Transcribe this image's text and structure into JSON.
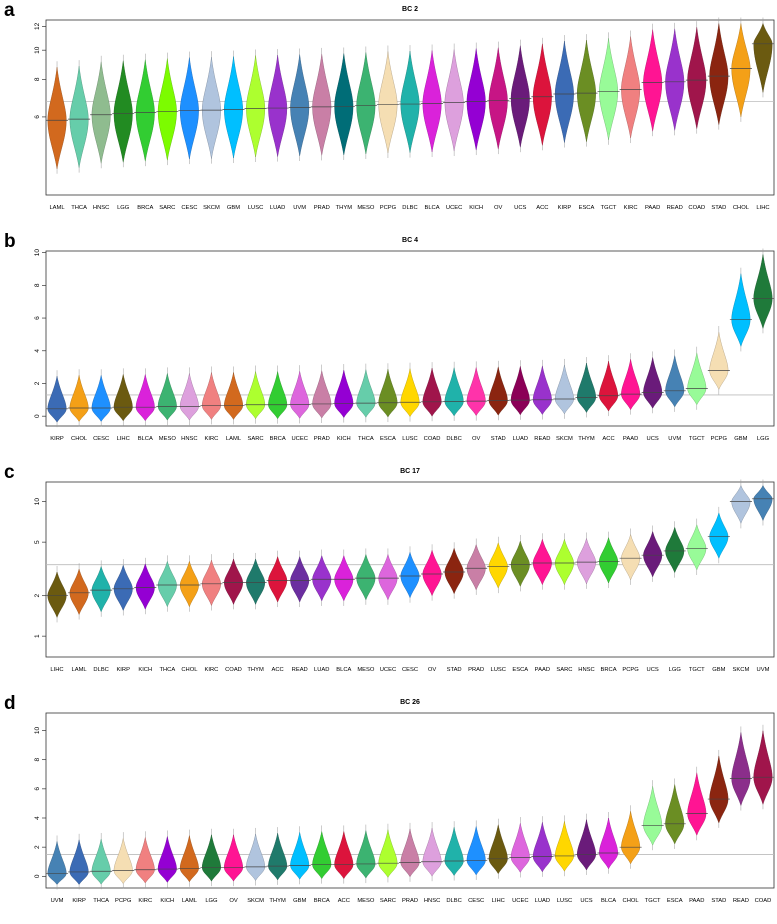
{
  "chart_data": [
    {
      "type": "violin",
      "panel": "a",
      "title": "BC 2",
      "xlabel": "",
      "ylabel": "",
      "ylim": [
        3.3,
        12.6
      ],
      "scale": "log",
      "yticks": [
        6,
        8,
        10,
        12
      ],
      "reference_line": 6.75,
      "grid": false,
      "categories": [
        "LAML",
        "THCA",
        "HNSC",
        "LGG",
        "BRCA",
        "SARC",
        "CESC",
        "SKCM",
        "GBM",
        "LUSC",
        "LUAD",
        "UVM",
        "PRAD",
        "THYM",
        "MESO",
        "PCPG",
        "DLBC",
        "BLCA",
        "UCEC",
        "KICH",
        "OV",
        "UCS",
        "ACC",
        "KIRP",
        "ESCA",
        "TGCT",
        "KIRC",
        "PAAD",
        "READ",
        "COAD",
        "STAD",
        "CHOL",
        "LIHC"
      ],
      "medians": [
        5.85,
        5.9,
        6.1,
        6.15,
        6.2,
        6.25,
        6.3,
        6.32,
        6.35,
        6.4,
        6.42,
        6.45,
        6.48,
        6.5,
        6.55,
        6.6,
        6.62,
        6.65,
        6.7,
        6.75,
        6.8,
        6.9,
        7.0,
        7.15,
        7.2,
        7.3,
        7.4,
        7.8,
        7.85,
        7.95,
        8.2,
        8.7,
        10.5
      ],
      "colors": [
        "#D2691E",
        "#66CDAA",
        "#8FBC8F",
        "#228B22",
        "#32CD32",
        "#7CFC00",
        "#1E90FF",
        "#B0C4DE",
        "#00BFFF",
        "#ADFF2F",
        "#9932CC",
        "#4682B4",
        "#C97FA6",
        "#006D77",
        "#3CB371",
        "#F5DEB3",
        "#20B2AA",
        "#DA22DA",
        "#DDA0DD",
        "#9400D3",
        "#C71585",
        "#6A1B7A",
        "#DC143C",
        "#3B6BB5",
        "#6B8E23",
        "#98FB98",
        "#F08080",
        "#FF1493",
        "#9932CC",
        "#A0154B",
        "#8B2510",
        "#F4A017",
        "#6B5A10"
      ]
    },
    {
      "type": "violin",
      "panel": "b",
      "title": "BC 4",
      "xlabel": "",
      "ylabel": "",
      "ylim": [
        -0.6,
        10.1
      ],
      "scale": "linear",
      "yticks": [
        0,
        2,
        4,
        6,
        8,
        10
      ],
      "reference_line": 1.3,
      "grid": false,
      "categories": [
        "KIRP",
        "CHOL",
        "CESC",
        "LIHC",
        "BLCA",
        "MESO",
        "HNSC",
        "KIRC",
        "LAML",
        "SARC",
        "BRCA",
        "UCEC",
        "PRAD",
        "KICH",
        "THCA",
        "ESCA",
        "LUSC",
        "COAD",
        "DLBC",
        "OV",
        "STAD",
        "LUAD",
        "READ",
        "SKCM",
        "THYM",
        "ACC",
        "PAAD",
        "UCS",
        "UVM",
        "TGCT",
        "PCPG",
        "GBM",
        "LGG"
      ],
      "medians": [
        0.45,
        0.5,
        0.5,
        0.55,
        0.55,
        0.6,
        0.6,
        0.65,
        0.65,
        0.7,
        0.7,
        0.72,
        0.75,
        0.78,
        0.8,
        0.82,
        0.85,
        0.88,
        0.9,
        0.92,
        0.95,
        0.98,
        1.0,
        1.05,
        1.15,
        1.25,
        1.35,
        1.45,
        1.55,
        1.7,
        2.8,
        5.9,
        7.2
      ],
      "colors": [
        "#3B6BB5",
        "#F4A017",
        "#1E90FF",
        "#6B5A10",
        "#DA22DA",
        "#3CB371",
        "#DDA0DD",
        "#F08080",
        "#D2691E",
        "#ADFF2F",
        "#32CD32",
        "#DD66DD",
        "#C97FA6",
        "#9400D3",
        "#66CDAA",
        "#6B8E23",
        "#FFD700",
        "#A0154B",
        "#20B2AA",
        "#FF33AA",
        "#8B2510",
        "#8B0057",
        "#9932CC",
        "#B0C4DE",
        "#1F7A6B",
        "#DC143C",
        "#FF1493",
        "#6A1B7A",
        "#4682B4",
        "#98FB98",
        "#F5DEB3",
        "#00BFFF",
        "#1F7A3A"
      ]
    },
    {
      "type": "violin",
      "panel": "c",
      "title": "BC 17",
      "xlabel": "",
      "ylabel": "",
      "ylim": [
        0.7,
        14
      ],
      "scale": "log",
      "yticks": [
        1,
        2,
        5,
        10
      ],
      "reference_line": 3.4,
      "grid": false,
      "categories": [
        "LIHC",
        "LAML",
        "DLBC",
        "KIRP",
        "KICH",
        "THCA",
        "CHOL",
        "KIRC",
        "COAD",
        "THYM",
        "ACC",
        "READ",
        "LUAD",
        "BLCA",
        "MESO",
        "UCEC",
        "CESC",
        "OV",
        "STAD",
        "PRAD",
        "LUSC",
        "ESCA",
        "PAAD",
        "SARC",
        "HNSC",
        "BRCA",
        "PCPG",
        "UCS",
        "LGG",
        "TGCT",
        "GBM",
        "SKCM",
        "UVM"
      ],
      "medians": [
        2.0,
        2.1,
        2.2,
        2.25,
        2.3,
        2.4,
        2.4,
        2.45,
        2.5,
        2.5,
        2.6,
        2.6,
        2.65,
        2.65,
        2.7,
        2.7,
        2.8,
        2.9,
        3.0,
        3.2,
        3.3,
        3.4,
        3.5,
        3.5,
        3.55,
        3.6,
        3.8,
        4.0,
        4.3,
        4.5,
        5.5,
        10.0,
        10.5
      ],
      "colors": [
        "#6B5A10",
        "#D2691E",
        "#20B2AA",
        "#3B6BB5",
        "#9400D3",
        "#66CDAA",
        "#F4A017",
        "#F08080",
        "#A0154B",
        "#1F7A6B",
        "#DC143C",
        "#6B2EA0",
        "#9932CC",
        "#DA22DA",
        "#3CB371",
        "#DD66DD",
        "#1E90FF",
        "#FF1493",
        "#8B2510",
        "#C97FA6",
        "#FFD700",
        "#6B8E23",
        "#FF1493",
        "#ADFF2F",
        "#DDA0DD",
        "#32CD32",
        "#F5DEB3",
        "#6A1B7A",
        "#1F7A3A",
        "#98FB98",
        "#00BFFF",
        "#B0C4DE",
        "#4682B4"
      ]
    },
    {
      "type": "violin",
      "panel": "d",
      "title": "BC 26",
      "xlabel": "",
      "ylabel": "",
      "ylim": [
        -0.8,
        11.2
      ],
      "scale": "linear",
      "yticks": [
        0,
        2,
        4,
        6,
        8,
        10
      ],
      "reference_line": 1.5,
      "grid": false,
      "categories": [
        "UVM",
        "KIRP",
        "THCA",
        "PCPG",
        "KIRC",
        "KICH",
        "LAML",
        "LGG",
        "OV",
        "SKCM",
        "THYM",
        "GBM",
        "BRCA",
        "ACC",
        "MESO",
        "SARC",
        "PRAD",
        "HNSC",
        "DLBC",
        "CESC",
        "LIHC",
        "UCEC",
        "LUAD",
        "LUSC",
        "UCS",
        "BLCA",
        "CHOL",
        "TGCT",
        "ESCA",
        "PAAD",
        "STAD",
        "READ",
        "COAD"
      ],
      "medians": [
        0.2,
        0.3,
        0.35,
        0.4,
        0.45,
        0.5,
        0.55,
        0.6,
        0.6,
        0.65,
        0.7,
        0.75,
        0.8,
        0.8,
        0.85,
        0.9,
        0.95,
        1.0,
        1.05,
        1.1,
        1.2,
        1.3,
        1.35,
        1.4,
        1.5,
        1.6,
        2.0,
        3.5,
        3.6,
        4.3,
        5.3,
        6.7,
        6.8
      ],
      "colors": [
        "#4682B4",
        "#3B6BB5",
        "#66CDAA",
        "#F5DEB3",
        "#F08080",
        "#9400D3",
        "#D2691E",
        "#1F7A3A",
        "#FF1493",
        "#B0C4DE",
        "#1F7A6B",
        "#00BFFF",
        "#32CD32",
        "#DC143C",
        "#3CB371",
        "#ADFF2F",
        "#C97FA6",
        "#DDA0DD",
        "#20B2AA",
        "#1E90FF",
        "#6B5A10",
        "#DD66DD",
        "#9932CC",
        "#FFD700",
        "#6A1B7A",
        "#DA22DA",
        "#F4A017",
        "#98FB98",
        "#6B8E23",
        "#FF1493",
        "#8B2510",
        "#8B2E8B",
        "#A0154B"
      ]
    }
  ]
}
